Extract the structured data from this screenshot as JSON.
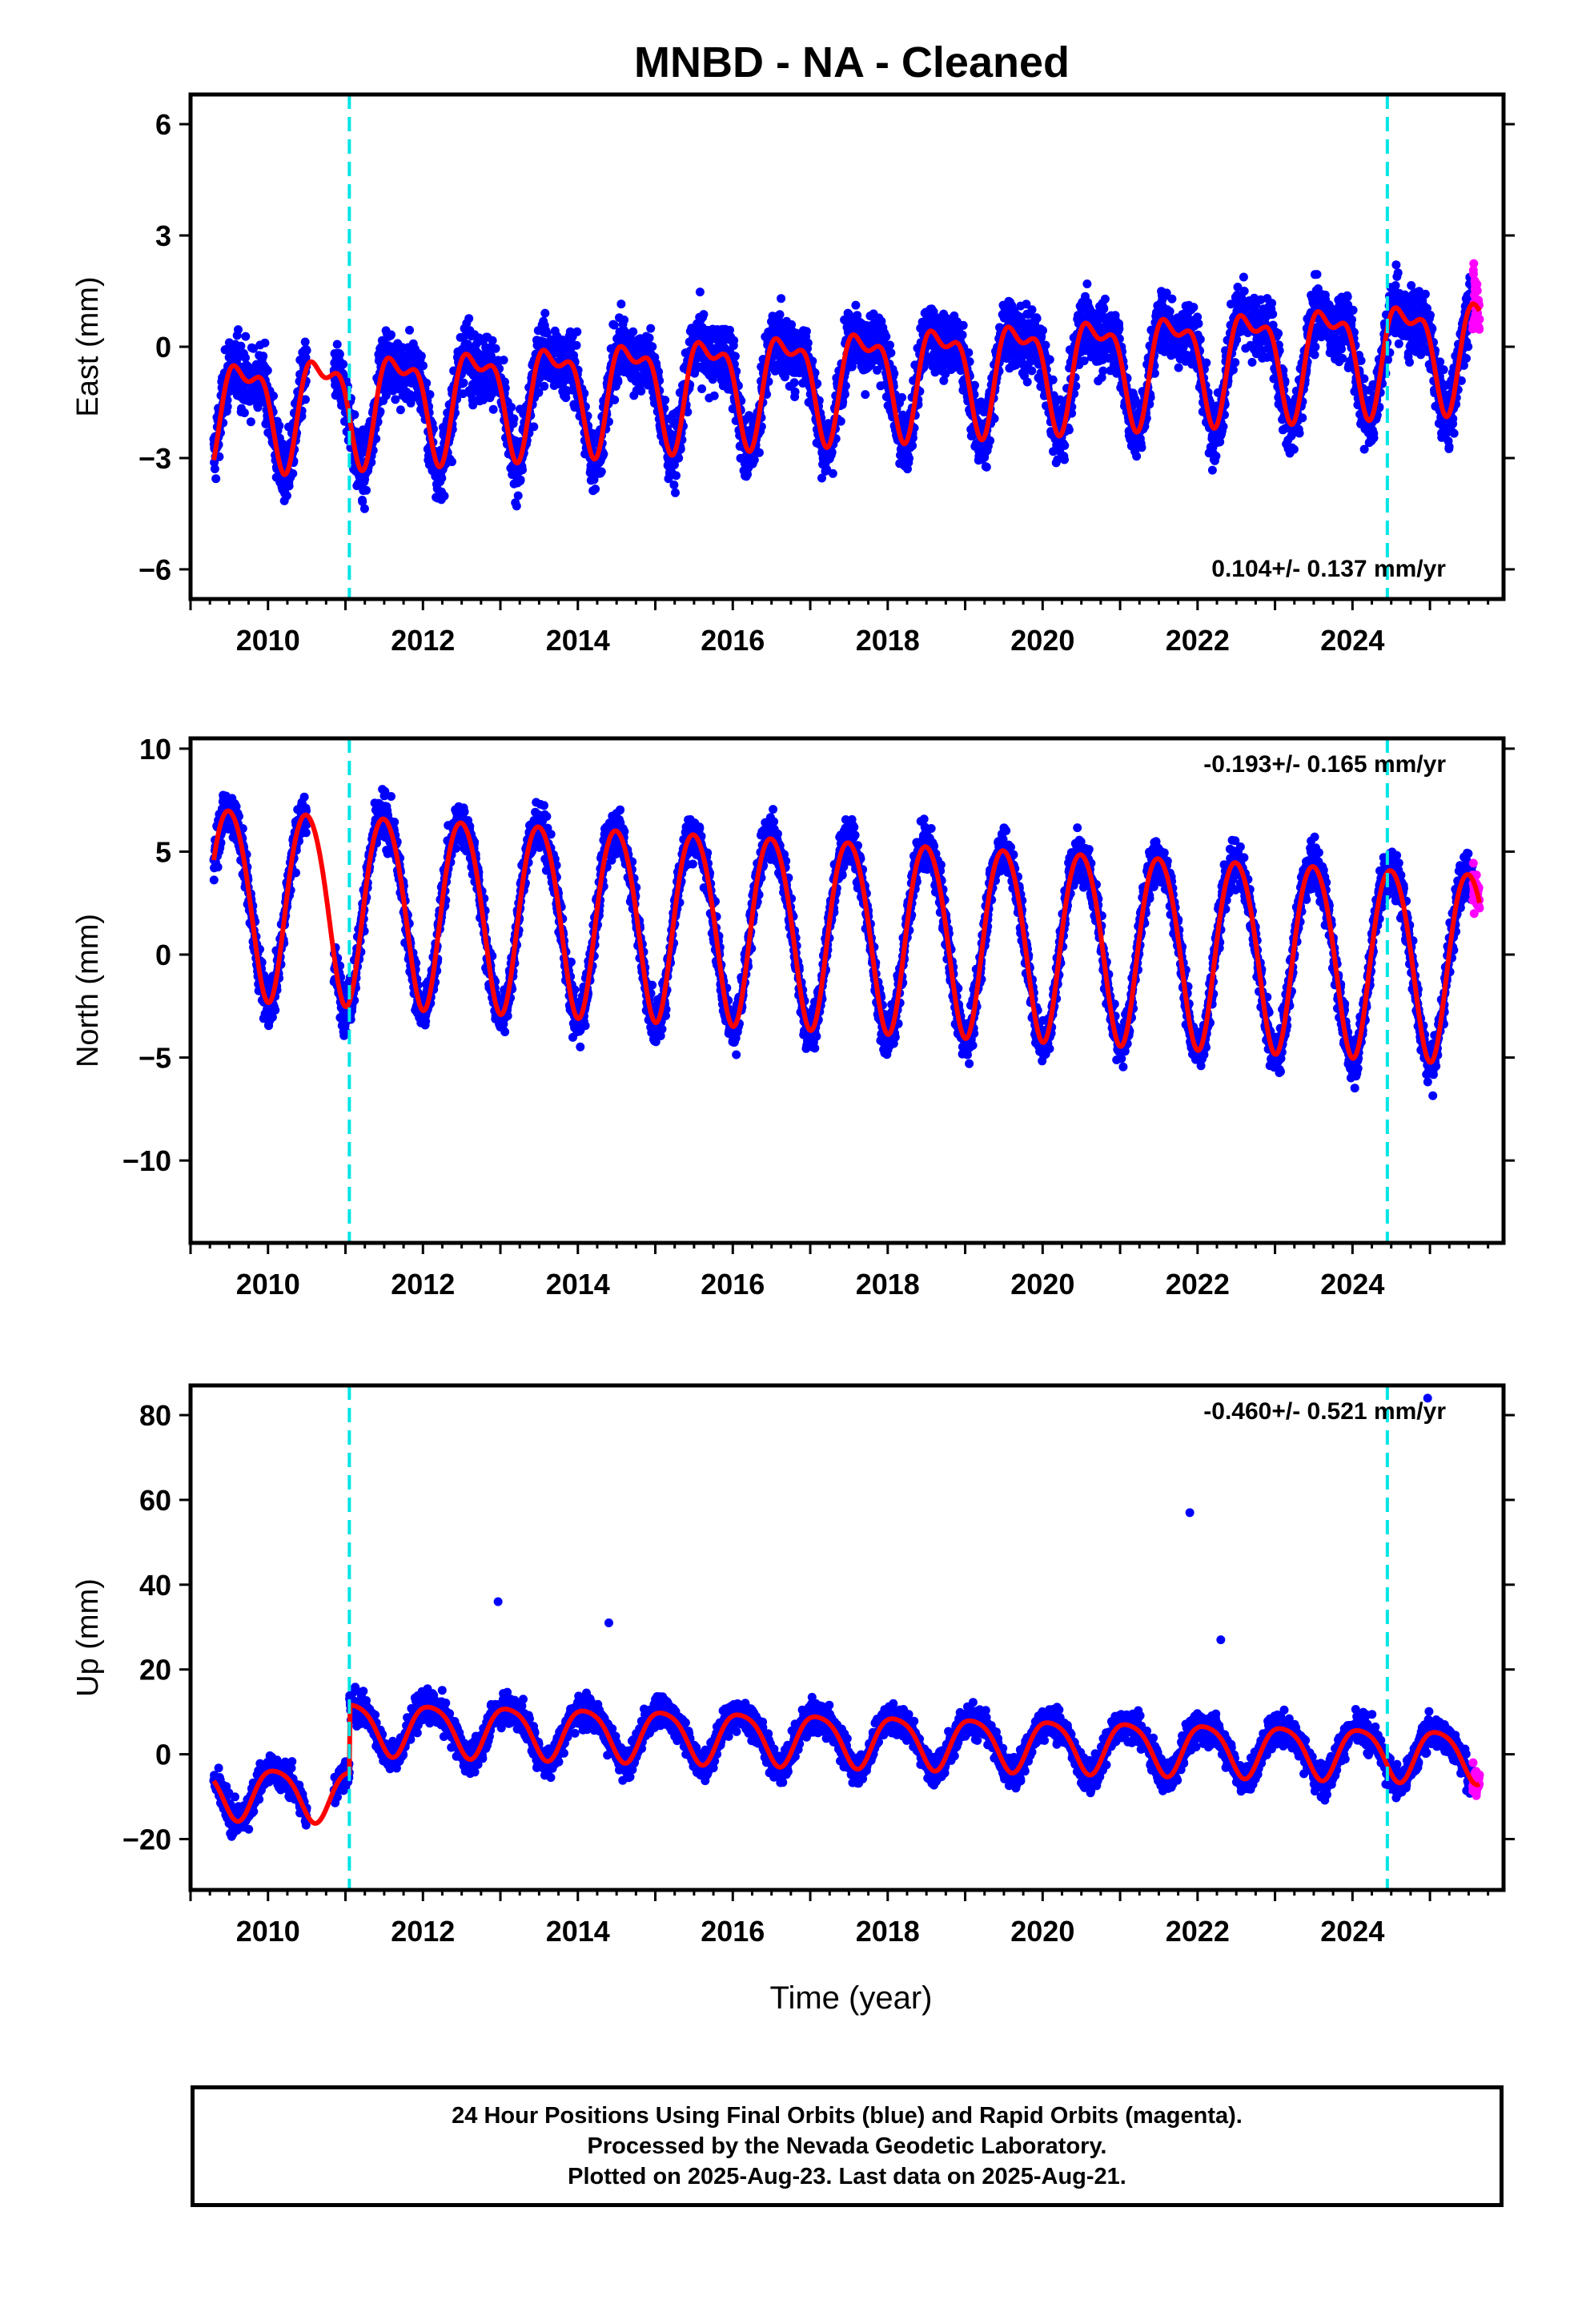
{
  "title": "MNBD  - NA - Cleaned",
  "xlabel": "Time (year)",
  "footer": {
    "line1": "24 Hour Positions Using Final Orbits (blue) and Rapid Orbits (magenta).",
    "line2": "Processed by the Nevada Geodetic Laboratory.",
    "line3": "Plotted on 2025-Aug-23. Last data on 2025-Aug-21."
  },
  "colors": {
    "final_orbits": "#0000ff",
    "rapid_orbits": "#ff00ff",
    "model_fit": "#ff0000",
    "equipment_change": "#00e5e5"
  },
  "chart_data": [
    {
      "type": "scatter",
      "component": "east",
      "ylabel": "East (mm)",
      "rate_label": "0.104+/- 0.137 mm/yr",
      "rate_position": "bottom-right",
      "xlim": [
        2009.0,
        2025.95
      ],
      "ylim": [
        -6.8,
        6.8
      ],
      "yticks": [
        6,
        3,
        0,
        -3,
        -6
      ],
      "xticks": [
        2010,
        2012,
        2014,
        2016,
        2018,
        2020,
        2022,
        2024
      ],
      "vlines": [
        2011.05,
        2024.45
      ],
      "data_start": 2009.3,
      "data_end": 2025.64,
      "rapid_start": 2025.55,
      "trend_offset": -0.8,
      "annual_amplitude": 1.3,
      "annual_phase": 0.45,
      "semiannual_amplitude": 0.6,
      "noise_sd": 1.1,
      "rate": 0.104,
      "offsets": [],
      "approx_range": [
        -6.5,
        6.5
      ]
    },
    {
      "type": "scatter",
      "component": "north",
      "ylabel": "North (mm)",
      "rate_label": "-0.193+/- 0.165 mm/yr",
      "rate_position": "top-right",
      "xlim": [
        2009.0,
        2025.95
      ],
      "ylim": [
        -14,
        10.5
      ],
      "yticks": [
        10,
        5,
        0,
        -5,
        -10
      ],
      "xticks": [
        2010,
        2012,
        2014,
        2016,
        2018,
        2020,
        2022,
        2024
      ],
      "vlines": [
        2011.05,
        2024.45
      ],
      "data_start": 2009.3,
      "data_end": 2025.64,
      "rapid_start": 2025.55,
      "trend_offset": 1.2,
      "annual_amplitude": 4.6,
      "annual_phase": 0.25,
      "semiannual_amplitude": 0.4,
      "noise_sd": 1.4,
      "rate": -0.193,
      "offsets": [],
      "approx_range": [
        -13.5,
        9.8
      ]
    },
    {
      "type": "scatter",
      "component": "up",
      "ylabel": "Up (mm)",
      "rate_label": "-0.460+/- 0.521 mm/yr",
      "rate_position": "top-right",
      "xlim": [
        2009.0,
        2025.95
      ],
      "ylim": [
        -32,
        87
      ],
      "yticks": [
        80,
        60,
        40,
        20,
        0,
        -20
      ],
      "xticks": [
        2010,
        2012,
        2014,
        2016,
        2018,
        2020,
        2022,
        2024
      ],
      "vlines": [
        2011.05,
        2024.45
      ],
      "data_start": 2009.3,
      "data_end": 2025.64,
      "rapid_start": 2025.55,
      "trend_offset": 3.5,
      "annual_amplitude": 6.0,
      "annual_phase": 0.85,
      "semiannual_amplitude": 1.0,
      "noise_sd": 4.5,
      "rate": -0.46,
      "offsets": [
        {
          "before": 2011.05,
          "shift": -16
        }
      ],
      "approx_range": [
        -29,
        85
      ],
      "outliers": [
        [
          2021.9,
          57
        ],
        [
          2024.97,
          84
        ],
        [
          2022.3,
          27
        ],
        [
          2012.97,
          36
        ],
        [
          2014.4,
          31
        ]
      ]
    }
  ]
}
